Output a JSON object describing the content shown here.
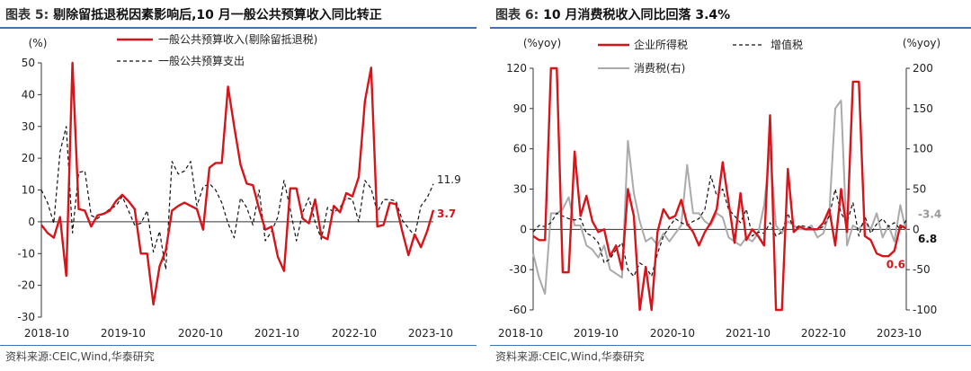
{
  "colors": {
    "red": "#d7141a",
    "black": "#111111",
    "gray": "#aaaaaa",
    "rule": "#3b73b9"
  },
  "left": {
    "title_label": "图表 5:",
    "title_text": "剔除留抵退税因素影响后,10 月一般公共预算收入同比转正",
    "source": "资料来源:CEIC,Wind,华泰研究"
  },
  "right": {
    "title_label": "图表 6:",
    "title_text": "10 月消费税收入同比回落 3.4%",
    "source": "资料来源:CEIC,Wind,华泰研究"
  },
  "chart_data": [
    {
      "type": "line",
      "title": "剔除留抵退税因素影响后,10 月一般公共预算收入同比转正",
      "ylabel": "(%)",
      "ylim": [
        -30,
        50
      ],
      "yticks": [
        -30,
        -20,
        -10,
        0,
        10,
        20,
        30,
        40,
        50
      ],
      "xticks": [
        "2018-10",
        "2019-10",
        "2020-10",
        "2021-10",
        "2022-10",
        "2023-10"
      ],
      "series": [
        {
          "name": "一般公共预算收入(剔除留抵退税)",
          "color": "#d7141a",
          "style": "solid",
          "values": [
            -1,
            -3.5,
            -5,
            1.5,
            -17,
            50,
            4,
            3.5,
            -1.5,
            2,
            2.5,
            3.5,
            6.5,
            8.5,
            6.5,
            4,
            -10,
            -10,
            -26,
            -14,
            -9,
            3.5,
            5,
            6,
            5,
            4,
            -2.5,
            17,
            18.5,
            18.5,
            42.5,
            30,
            18,
            12,
            11.5,
            4,
            -2.5,
            -1.5,
            -11,
            -15.5,
            10.5,
            10.5,
            1,
            -0.5,
            7,
            -4.5,
            -5.5,
            5,
            3,
            9,
            8,
            14,
            38,
            48.5,
            -1.5,
            -1,
            6,
            5.5,
            -3,
            -10.5,
            -4,
            -8,
            -3,
            3.7
          ],
          "end_label": "3.7"
        },
        {
          "name": "一般公共预算支出",
          "color": "#111111",
          "style": "dashed",
          "values": [
            10,
            6,
            -0.5,
            22,
            30,
            -3.5,
            15.5,
            16,
            2,
            1,
            2.5,
            4,
            5,
            8,
            3.5,
            -1,
            -0.5,
            3.5,
            -9.5,
            -3,
            -15,
            19,
            15,
            16,
            19,
            5,
            11,
            12,
            10,
            6,
            -0.5,
            -5,
            7.5,
            4.5,
            -1,
            10,
            -6,
            -3,
            1.5,
            13,
            4,
            -6,
            3,
            7.5,
            0,
            -5.5,
            4.5,
            3,
            4.5,
            7.5,
            7,
            0,
            13,
            10.5,
            3,
            7,
            7,
            6.5,
            0.5,
            -2,
            -4.5,
            5,
            7.5,
            11.9
          ],
          "end_label": "11.9"
        }
      ]
    },
    {
      "type": "line",
      "title": "10 月消费税收入同比回落 3.4%",
      "ylabel_left": "(%yoy)",
      "ylabel_right": "(%yoy)",
      "ylim_left": [
        -60,
        120
      ],
      "yticks_left": [
        -60,
        -30,
        0,
        30,
        60,
        90,
        120
      ],
      "ylim_right": [
        -100,
        200
      ],
      "yticks_right": [
        -100,
        -50,
        0,
        50,
        100,
        150,
        200
      ],
      "xticks": [
        "2018-10",
        "2019-10",
        "2020-10",
        "2021-10",
        "2022-10",
        "2023-10"
      ],
      "series": [
        {
          "name": "企业所得税",
          "axis": "left",
          "color": "#d7141a",
          "style": "solid",
          "values": [
            -5,
            -8,
            -8,
            120,
            120,
            -32,
            -32,
            58,
            10,
            25,
            6,
            -2,
            0,
            -20,
            -12,
            -30,
            30,
            10,
            -60,
            -28,
            -60,
            -2,
            15,
            8,
            10,
            22,
            4,
            -2,
            -12,
            -2,
            5,
            15,
            50,
            20,
            -10,
            27,
            -8,
            0,
            -5,
            -12,
            85,
            -60,
            -60,
            45,
            -2,
            2,
            0,
            0,
            0,
            5,
            15,
            -12,
            30,
            -2,
            110,
            110,
            -5,
            -8,
            -18,
            -20,
            -20,
            -16,
            3,
            0.6
          ],
          "end_label": "0.6"
        },
        {
          "name": "增值税",
          "axis": "left",
          "color": "#111111",
          "style": "dashed",
          "values": [
            -2,
            3,
            2,
            5,
            12,
            10,
            8,
            7,
            8,
            -3,
            -5,
            -10,
            -25,
            -22,
            -15,
            -10,
            -30,
            -35,
            -25,
            -28,
            -35,
            -18,
            -5,
            2,
            8,
            5,
            3,
            6,
            8,
            15,
            40,
            25,
            30,
            15,
            10,
            5,
            15,
            -5,
            -2,
            -3,
            5,
            -5,
            -2,
            12,
            0,
            3,
            2,
            1,
            0,
            2,
            10,
            30,
            12,
            5,
            20,
            -5,
            10,
            -3,
            4,
            8,
            2,
            5,
            0,
            6.8
          ],
          "end_label": "6.8"
        },
        {
          "name": "消费税(右)",
          "axis": "right",
          "color": "#aaaaaa",
          "style": "solid",
          "values": [
            -30,
            -60,
            -80,
            20,
            20,
            25,
            40,
            5,
            5,
            -20,
            -25,
            -35,
            -20,
            -50,
            -55,
            -60,
            110,
            45,
            10,
            -15,
            -10,
            -20,
            -5,
            -15,
            -5,
            5,
            80,
            20,
            20,
            10,
            5,
            20,
            15,
            -10,
            -15,
            -20,
            -10,
            -15,
            -5,
            30,
            100,
            5,
            -5,
            10,
            5,
            0,
            0,
            5,
            -10,
            -5,
            20,
            150,
            160,
            -20,
            5,
            0,
            10,
            0,
            20,
            -10,
            5,
            -15,
            30,
            -3.4
          ],
          "end_label": "-3.4"
        }
      ]
    }
  ]
}
